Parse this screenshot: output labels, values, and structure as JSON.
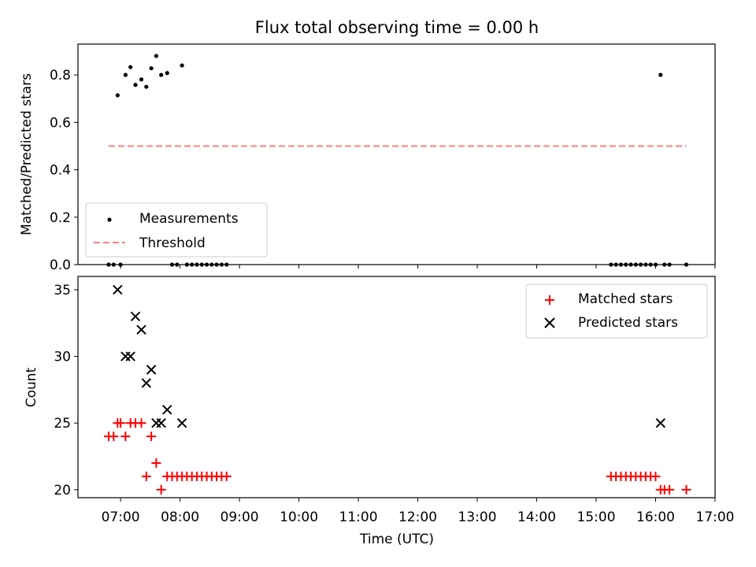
{
  "chart_data": [
    {
      "type": "scatter",
      "title": "Flux total observing time = 0.00 h",
      "xlabel": "",
      "ylabel": "Matched/Predicted stars",
      "xlim": [
        "06:17",
        "17:00"
      ],
      "ylim": [
        0,
        0.93
      ],
      "yticks": [
        0.0,
        0.2,
        0.4,
        0.6,
        0.8
      ],
      "ytick_labels": [
        "0.0",
        "0.2",
        "0.4",
        "0.6",
        "0.8"
      ],
      "legend_position": "bottom-left",
      "series": [
        {
          "name": "Measurements",
          "marker": "dot",
          "color": "#000000",
          "points": [
            {
              "t": "06:48",
              "y": 0
            },
            {
              "t": "06:53",
              "y": 0
            },
            {
              "t": "06:57",
              "y": 0.714
            },
            {
              "t": "07:00",
              "y": 0
            },
            {
              "t": "07:05",
              "y": 0.8
            },
            {
              "t": "07:10",
              "y": 0.833
            },
            {
              "t": "07:15",
              "y": 0.758
            },
            {
              "t": "07:21",
              "y": 0.781
            },
            {
              "t": "07:26",
              "y": 0.75
            },
            {
              "t": "07:31",
              "y": 0.828
            },
            {
              "t": "07:36",
              "y": 0.88
            },
            {
              "t": "07:41",
              "y": 0.8
            },
            {
              "t": "07:47",
              "y": 0.808
            },
            {
              "t": "07:52",
              "y": 0
            },
            {
              "t": "07:57",
              "y": 0
            },
            {
              "t": "08:02",
              "y": 0.84
            },
            {
              "t": "08:07",
              "y": 0
            },
            {
              "t": "08:12",
              "y": 0
            },
            {
              "t": "08:17",
              "y": 0
            },
            {
              "t": "08:22",
              "y": 0
            },
            {
              "t": "08:27",
              "y": 0
            },
            {
              "t": "08:32",
              "y": 0
            },
            {
              "t": "08:37",
              "y": 0
            },
            {
              "t": "08:42",
              "y": 0
            },
            {
              "t": "08:47",
              "y": 0
            },
            {
              "t": "15:15",
              "y": 0
            },
            {
              "t": "15:20",
              "y": 0
            },
            {
              "t": "15:25",
              "y": 0
            },
            {
              "t": "15:30",
              "y": 0
            },
            {
              "t": "15:35",
              "y": 0
            },
            {
              "t": "15:40",
              "y": 0
            },
            {
              "t": "15:45",
              "y": 0
            },
            {
              "t": "15:50",
              "y": 0
            },
            {
              "t": "15:55",
              "y": 0
            },
            {
              "t": "16:00",
              "y": 0
            },
            {
              "t": "16:05",
              "y": 0.8
            },
            {
              "t": "16:09",
              "y": 0
            },
            {
              "t": "16:14",
              "y": 0
            },
            {
              "t": "16:31",
              "y": 0
            }
          ]
        },
        {
          "name": "Threshold",
          "marker": "dashed-line",
          "color": "#ff8080",
          "points": [
            {
              "t": "06:48",
              "y": 0.5
            },
            {
              "t": "16:31",
              "y": 0.5
            }
          ]
        }
      ]
    },
    {
      "type": "scatter",
      "title": "",
      "xlabel": "Time (UTC)",
      "ylabel": "Count",
      "xlim": [
        "06:17",
        "17:00"
      ],
      "ylim": [
        19.4,
        36.0
      ],
      "xticks": [
        "07:00",
        "08:00",
        "09:00",
        "10:00",
        "11:00",
        "12:00",
        "13:00",
        "14:00",
        "15:00",
        "16:00",
        "17:00"
      ],
      "yticks": [
        20,
        25,
        30,
        35
      ],
      "ytick_labels": [
        "20",
        "25",
        "30",
        "35"
      ],
      "legend_position": "top-right",
      "series": [
        {
          "name": "Matched stars",
          "marker": "plus",
          "color": "#ff0000",
          "points": [
            {
              "t": "06:48",
              "y": 24
            },
            {
              "t": "06:53",
              "y": 24
            },
            {
              "t": "06:57",
              "y": 25
            },
            {
              "t": "07:00",
              "y": 25
            },
            {
              "t": "07:05",
              "y": 24
            },
            {
              "t": "07:10",
              "y": 25
            },
            {
              "t": "07:15",
              "y": 25
            },
            {
              "t": "07:21",
              "y": 25
            },
            {
              "t": "07:26",
              "y": 21
            },
            {
              "t": "07:31",
              "y": 24
            },
            {
              "t": "07:36",
              "y": 22
            },
            {
              "t": "07:41",
              "y": 20
            },
            {
              "t": "07:47",
              "y": 21
            },
            {
              "t": "07:52",
              "y": 21
            },
            {
              "t": "07:57",
              "y": 21
            },
            {
              "t": "08:02",
              "y": 21
            },
            {
              "t": "08:07",
              "y": 21
            },
            {
              "t": "08:12",
              "y": 21
            },
            {
              "t": "08:17",
              "y": 21
            },
            {
              "t": "08:22",
              "y": 21
            },
            {
              "t": "08:27",
              "y": 21
            },
            {
              "t": "08:32",
              "y": 21
            },
            {
              "t": "08:37",
              "y": 21
            },
            {
              "t": "08:42",
              "y": 21
            },
            {
              "t": "08:47",
              "y": 21
            },
            {
              "t": "15:15",
              "y": 21
            },
            {
              "t": "15:20",
              "y": 21
            },
            {
              "t": "15:25",
              "y": 21
            },
            {
              "t": "15:30",
              "y": 21
            },
            {
              "t": "15:35",
              "y": 21
            },
            {
              "t": "15:40",
              "y": 21
            },
            {
              "t": "15:45",
              "y": 21
            },
            {
              "t": "15:50",
              "y": 21
            },
            {
              "t": "15:55",
              "y": 21
            },
            {
              "t": "16:00",
              "y": 21
            },
            {
              "t": "16:05",
              "y": 20
            },
            {
              "t": "16:09",
              "y": 20
            },
            {
              "t": "16:14",
              "y": 20
            },
            {
              "t": "16:31",
              "y": 20
            }
          ]
        },
        {
          "name": "Predicted stars",
          "marker": "x",
          "color": "#000000",
          "points": [
            {
              "t": "06:57",
              "y": 35
            },
            {
              "t": "07:05",
              "y": 30
            },
            {
              "t": "07:10",
              "y": 30
            },
            {
              "t": "07:15",
              "y": 33
            },
            {
              "t": "07:21",
              "y": 32
            },
            {
              "t": "07:26",
              "y": 28
            },
            {
              "t": "07:31",
              "y": 29
            },
            {
              "t": "07:36",
              "y": 25
            },
            {
              "t": "07:41",
              "y": 25
            },
            {
              "t": "07:47",
              "y": 26
            },
            {
              "t": "08:02",
              "y": 25
            },
            {
              "t": "16:05",
              "y": 25
            }
          ]
        }
      ]
    }
  ]
}
